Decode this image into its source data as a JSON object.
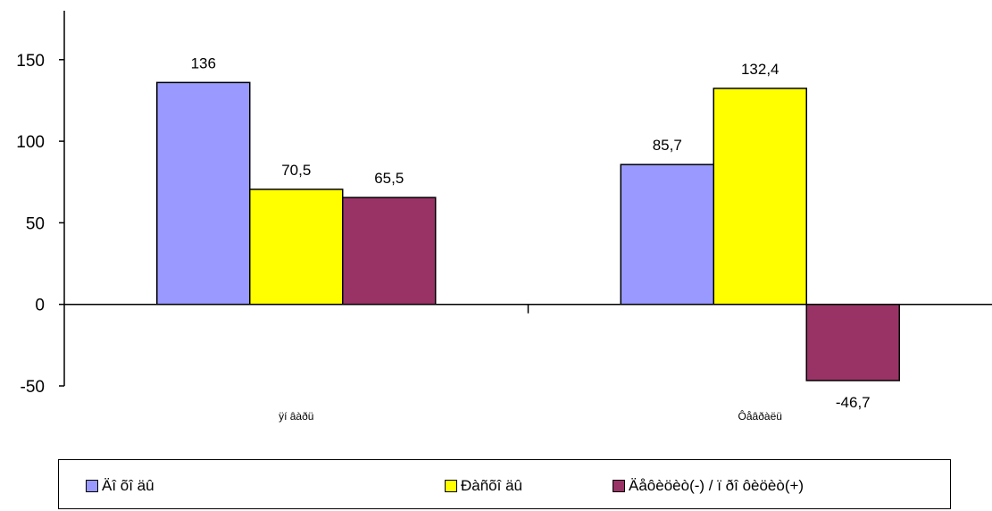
{
  "chart_data": {
    "type": "bar",
    "categories": [
      "ÿí âàðü",
      "Ôåâðàëü"
    ],
    "series": [
      {
        "name": "Äî õî äû",
        "color": "#9999ff",
        "values": [
          136,
          85.7
        ],
        "labels": [
          "136",
          "85,7"
        ]
      },
      {
        "name": "Ðàñõî äû",
        "color": "#ffff00",
        "values": [
          70.5,
          132.4
        ],
        "labels": [
          "70,5",
          "132,4"
        ]
      },
      {
        "name": "Äåôèöèò(-) / ï ðî ôèöèò(+)",
        "color": "#993366",
        "values": [
          65.5,
          -46.7
        ],
        "labels": [
          "65,5",
          "-46,7"
        ]
      }
    ],
    "yticks": [
      -50,
      0,
      50,
      100,
      150
    ],
    "ylim": [
      -50,
      180
    ],
    "legend_position": "bottom"
  }
}
